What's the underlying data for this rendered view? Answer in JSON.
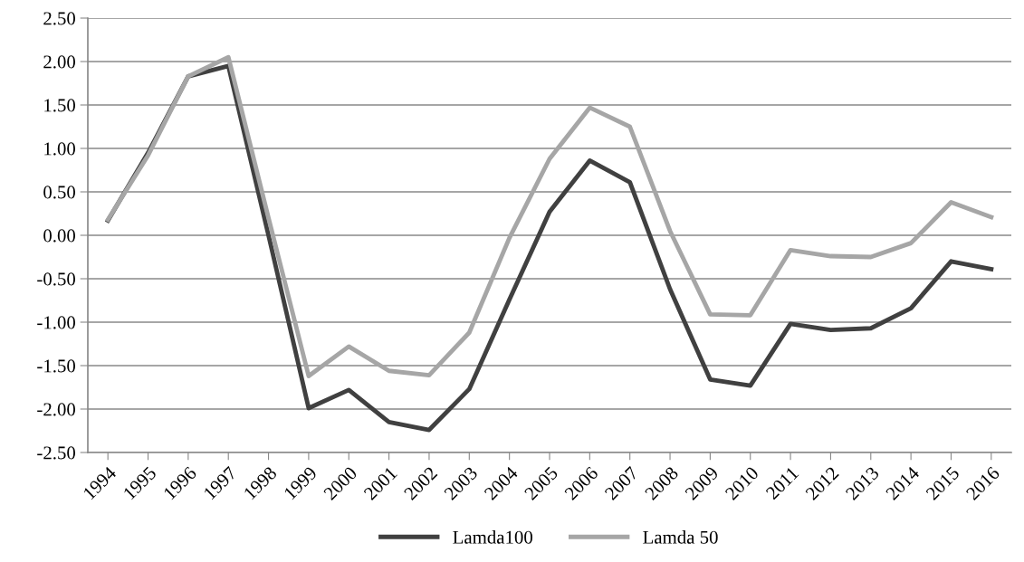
{
  "chart_data": {
    "type": "line",
    "categories": [
      "1994",
      "1995",
      "1996",
      "1997",
      "1998",
      "1999",
      "2000",
      "2001",
      "2002",
      "2003",
      "2004",
      "2005",
      "2006",
      "2007",
      "2008",
      "2009",
      "2010",
      "2011",
      "2012",
      "2013",
      "2014",
      "2015",
      "2016"
    ],
    "series": [
      {
        "name": "Lamda100",
        "color": "#404040",
        "values": [
          0.17,
          0.95,
          1.83,
          1.95,
          0.0,
          -1.99,
          -1.78,
          -2.15,
          -2.24,
          -1.77,
          -0.74,
          0.27,
          0.86,
          0.61,
          -0.62,
          -1.66,
          -1.73,
          -1.02,
          -1.09,
          -1.07,
          -0.84,
          -0.3,
          -0.39
        ]
      },
      {
        "name": "Lamda 50",
        "color": "#a6a6a6",
        "values": [
          0.18,
          0.92,
          1.83,
          2.05,
          0.2,
          -1.62,
          -1.28,
          -1.56,
          -1.61,
          -1.12,
          -0.03,
          0.88,
          1.47,
          1.25,
          0.05,
          -0.91,
          -0.92,
          -0.17,
          -0.24,
          -0.25,
          -0.09,
          0.38,
          0.21
        ]
      }
    ],
    "ylim": [
      -2.5,
      2.5
    ],
    "yticks": [
      {
        "value": -2.5,
        "label": "-2.50"
      },
      {
        "value": -2,
        "label": "-2.00"
      },
      {
        "value": -1.5,
        "label": "-1.50"
      },
      {
        "value": -1,
        "label": "-1.00"
      },
      {
        "value": -0.5,
        "label": "-0.50"
      },
      {
        "value": 0,
        "label": "0.00"
      },
      {
        "value": 0.5,
        "label": "0.50"
      },
      {
        "value": 1,
        "label": "1.00"
      },
      {
        "value": 1.5,
        "label": "1.50"
      },
      {
        "value": 2,
        "label": "2.00"
      },
      {
        "value": 2.5,
        "label": "2.50"
      }
    ],
    "grid": "y",
    "legend": "bottom",
    "marker": "none",
    "line_style": "solid"
  }
}
